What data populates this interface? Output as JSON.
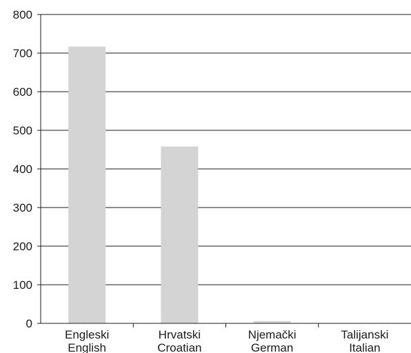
{
  "chart_data": {
    "type": "bar",
    "title": "",
    "xlabel": "",
    "ylabel": "",
    "categories": [
      {
        "line1": "Engleski",
        "line2": "English"
      },
      {
        "line1": "Hrvatski",
        "line2": "Croatian"
      },
      {
        "line1": "Njemački",
        "line2": "German"
      },
      {
        "line1": "Talijanski",
        "line2": "Italian"
      }
    ],
    "values": [
      717,
      458,
      6,
      0
    ],
    "ylim": [
      0,
      800
    ],
    "yticks": [
      "0",
      "100",
      "200",
      "300",
      "400",
      "500",
      "600",
      "700",
      "800"
    ],
    "grid": true,
    "legend": "none",
    "bar_color": "#d4d4d4",
    "grid_color": "#1a1a1a"
  }
}
